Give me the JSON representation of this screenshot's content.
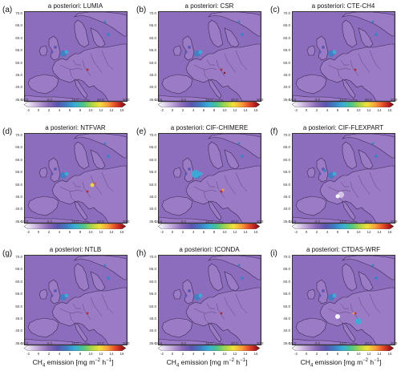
{
  "panels": [
    {
      "letter": "(a)",
      "title": "a posteriori: LUMIA",
      "variant": "a"
    },
    {
      "letter": "(b)",
      "title": "a posteriori: CSR",
      "variant": "b"
    },
    {
      "letter": "(c)",
      "title": "a posteriori: CTE-CH4",
      "variant": "a"
    },
    {
      "letter": "(d)",
      "title": "a posteriori: NTFVAR",
      "variant": "d"
    },
    {
      "letter": "(e)",
      "title": "a posteriori: CIF-CHIMERE",
      "variant": "e"
    },
    {
      "letter": "(f)",
      "title": "a posteriori: CIF-FLEXPART",
      "variant": "f"
    },
    {
      "letter": "(g)",
      "title": "a posteriori: NTLB",
      "variant": "a"
    },
    {
      "letter": "(h)",
      "title": "a posteriori: ICONDA",
      "variant": "a"
    },
    {
      "letter": "(i)",
      "title": "a posteriori: CTDAS-WRF",
      "variant": "i"
    }
  ],
  "lat_ticks": [
    "70.0",
    "65.0",
    "60.0",
    "55.0",
    "50.0",
    "45.0",
    "40.0",
    "35.0"
  ],
  "lon_ticks": [
    "-10.0",
    "0.0",
    "10.0",
    "20.0",
    "30.0"
  ],
  "colorbar_ticks": [
    "-2",
    "0",
    "2",
    "4",
    "6",
    "8",
    "10",
    "12",
    "14",
    "16"
  ],
  "colorbar_min": -2,
  "colorbar_max": 16,
  "colorbar_colors": [
    "#ffffff",
    "#d9cbe8",
    "#b497d0",
    "#8a68b8",
    "#5b55b0",
    "#3e7fc4",
    "#3aaed8",
    "#4cc48a",
    "#a6d54a",
    "#f2e03a",
    "#f6a03a",
    "#e8502a",
    "#b51f1f",
    "#7a0a0a"
  ],
  "xaxis_label": "CH4 emission [mg m−2 h−1]",
  "xaxis_label_parts": {
    "pre": "CH",
    "sub": "4",
    "mid": " emission [mg m",
    "sup1": "−2",
    "mid2": " h",
    "sup2": "−1",
    "post": "]"
  }
}
